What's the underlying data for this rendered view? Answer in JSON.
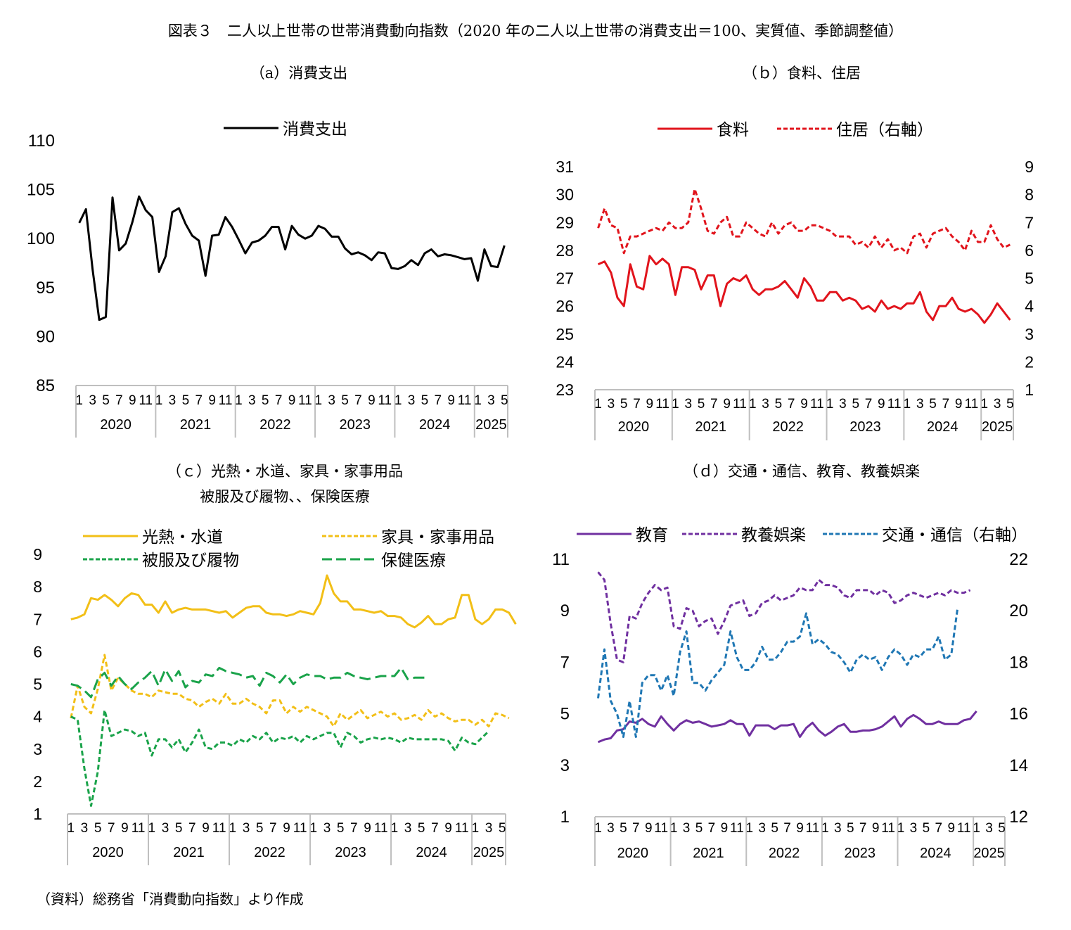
{
  "figure_title": "図表３　二人以上世帯の世帯消費動向指数（2020 年の二人以上世帯の消費支出＝100、実質値、季節調整値）",
  "source_note": "（資料）総務省「消費動向指数」より作成",
  "colors": {
    "black": "#000000",
    "red": "#e1141c",
    "yellow": "#f2bf17",
    "green": "#1aa34a",
    "purple": "#7030a0",
    "blue": "#1f77b4",
    "axis": "#bfbfbf"
  },
  "chart_data": [
    {
      "id": "a",
      "type": "line",
      "subtitle": "（a）消費支出",
      "x_month_labels": [
        "1",
        "3",
        "5",
        "7",
        "9",
        "11",
        "1",
        "3",
        "5",
        "7",
        "9",
        "11",
        "1",
        "3",
        "5",
        "7",
        "9",
        "11",
        "1",
        "3",
        "5",
        "7",
        "9",
        "11",
        "1",
        "3",
        "5",
        "7",
        "9",
        "11",
        "1",
        "3",
        "5"
      ],
      "years": [
        "2020",
        "2021",
        "2022",
        "2023",
        "2024",
        "2025"
      ],
      "ylim": [
        85,
        110
      ],
      "yticks": [
        "85",
        "90",
        "95",
        "100",
        "105",
        "110"
      ],
      "legend_position": "top",
      "series": [
        {
          "name": "消費支出",
          "axis": "left",
          "style": "solid",
          "color": "#000000",
          "values": [
            101.6,
            103,
            96.9,
            91.7,
            92,
            104.2,
            98.8,
            99.5,
            101.7,
            104.3,
            102.9,
            102.2,
            96.6,
            98.2,
            102.7,
            103.1,
            101.5,
            100.3,
            99.8,
            96.2,
            100.3,
            100.4,
            102.2,
            101.2,
            99.9,
            98.5,
            99.6,
            99.8,
            100.3,
            101.2,
            101.2,
            98.9,
            101.3,
            100.4,
            100,
            100.3,
            101.3,
            101,
            100.2,
            100.2,
            99,
            98.4,
            98.6,
            98.3,
            97.8,
            98.6,
            98.5,
            97,
            96.9,
            97.2,
            97.8,
            97.3,
            98.5,
            98.9,
            98.2,
            98.4,
            98.3,
            98.1,
            97.9,
            98,
            95.7,
            98.9,
            97.2,
            97.1,
            99.3
          ]
        }
      ]
    },
    {
      "id": "b",
      "type": "line",
      "subtitle": "（ｂ）食料、住居",
      "x_month_labels": [
        "1",
        "3",
        "5",
        "7",
        "9",
        "11",
        "1",
        "3",
        "5",
        "7",
        "9",
        "11",
        "1",
        "3",
        "5",
        "7",
        "9",
        "11",
        "1",
        "3",
        "5",
        "7",
        "9",
        "11",
        "1",
        "3",
        "5",
        "7",
        "9",
        "11",
        "1",
        "3",
        "5"
      ],
      "years": [
        "2020",
        "2021",
        "2022",
        "2023",
        "2024",
        "2025"
      ],
      "ylim": [
        23,
        31
      ],
      "yticks": [
        "23",
        "24",
        "25",
        "26",
        "27",
        "28",
        "29",
        "30",
        "31"
      ],
      "y2lim": [
        1,
        9
      ],
      "y2ticks": [
        "1",
        "2",
        "3",
        "4",
        "5",
        "6",
        "7",
        "8",
        "9"
      ],
      "legend_position": "top",
      "series": [
        {
          "name": "食料",
          "axis": "left",
          "style": "solid",
          "color": "#e1141c",
          "values": [
            27.5,
            27.6,
            27.2,
            26.3,
            26,
            27.5,
            26.7,
            26.6,
            27.8,
            27.5,
            27.7,
            27.5,
            26.4,
            27.4,
            27.4,
            27.3,
            26.6,
            27.1,
            27.1,
            26,
            26.8,
            27,
            26.9,
            27.1,
            26.6,
            26.4,
            26.6,
            26.6,
            26.7,
            26.9,
            26.6,
            26.3,
            27,
            26.7,
            26.2,
            26.2,
            26.5,
            26.5,
            26.2,
            26.3,
            26.2,
            25.9,
            26,
            25.8,
            26.2,
            25.9,
            26,
            25.9,
            26.1,
            26.1,
            26.5,
            25.8,
            25.5,
            26,
            26,
            26.3,
            25.9,
            25.8,
            25.9,
            25.7,
            25.4,
            25.7,
            26.1,
            25.8,
            25.5
          ]
        },
        {
          "name": "住居（右軸）",
          "axis": "right",
          "style": "dashed",
          "color": "#e1141c",
          "values": [
            6.8,
            7.5,
            6.9,
            6.8,
            5.9,
            6.5,
            6.5,
            6.6,
            6.7,
            6.8,
            6.7,
            7,
            6.8,
            6.8,
            7,
            8.2,
            7.5,
            6.7,
            6.6,
            7,
            7.2,
            6.5,
            6.5,
            7,
            6.8,
            6.6,
            6.5,
            7,
            6.6,
            6.9,
            7,
            6.7,
            6.7,
            6.9,
            6.9,
            6.8,
            6.7,
            6.5,
            6.5,
            6.5,
            6.2,
            6.3,
            6.1,
            6.5,
            6.1,
            6.4,
            6,
            6.1,
            5.9,
            6.5,
            6.6,
            6.1,
            6.6,
            6.7,
            6.8,
            6.5,
            6.3,
            6,
            6.7,
            6.3,
            6.3,
            6.9,
            6.4,
            6.1,
            6.2
          ]
        }
      ]
    },
    {
      "id": "c",
      "type": "line",
      "subtitle": "（ｃ）光熱・水道、家具・家事用品",
      "subtitle2": "被服及び履物、、保険医療",
      "x_month_labels": [
        "1",
        "3",
        "5",
        "7",
        "9",
        "11",
        "1",
        "3",
        "5",
        "7",
        "9",
        "11",
        "1",
        "3",
        "5",
        "7",
        "9",
        "11",
        "1",
        "3",
        "5",
        "7",
        "9",
        "11",
        "1",
        "3",
        "5",
        "7",
        "9",
        "11",
        "1",
        "3",
        "5"
      ],
      "years": [
        "2020",
        "2021",
        "2022",
        "2023",
        "2024",
        "2025"
      ],
      "ylim": [
        1,
        9
      ],
      "yticks": [
        "1",
        "2",
        "3",
        "4",
        "5",
        "6",
        "7",
        "8",
        "9"
      ],
      "legend_position": "top",
      "series": [
        {
          "name": "光熱・水道",
          "axis": "left",
          "style": "solid",
          "color": "#f2bf17",
          "values": [
            7,
            7.05,
            7.15,
            7.65,
            7.6,
            7.75,
            7.6,
            7.4,
            7.65,
            7.8,
            7.75,
            7.45,
            7.45,
            7.2,
            7.55,
            7.2,
            7.3,
            7.35,
            7.3,
            7.3,
            7.3,
            7.25,
            7.2,
            7.25,
            7.05,
            7.2,
            7.35,
            7.4,
            7.4,
            7.2,
            7.15,
            7.15,
            7.1,
            7.15,
            7.25,
            7.2,
            7.15,
            7.5,
            8.35,
            7.8,
            7.55,
            7.55,
            7.3,
            7.3,
            7.25,
            7.2,
            7.25,
            7.1,
            7.1,
            7.05,
            6.85,
            6.75,
            6.9,
            7.1,
            6.85,
            6.85,
            7,
            7.05,
            7.75,
            7.75,
            7,
            6.85,
            7,
            7.3,
            7.3,
            7.2,
            6.85
          ]
        },
        {
          "name": "家具・家事用品",
          "axis": "left",
          "style": "dashed",
          "color": "#f2bf17",
          "values": [
            3.95,
            4.95,
            4.3,
            4.1,
            4.85,
            5.9,
            4.8,
            5.2,
            5,
            4.8,
            4.7,
            4.7,
            4.6,
            4.8,
            4.75,
            4.7,
            4.7,
            4.55,
            4.5,
            4.3,
            4.45,
            4.55,
            4.4,
            4.7,
            4.4,
            4.4,
            4.55,
            4.4,
            4.3,
            4.1,
            4.5,
            4.5,
            4.1,
            4.3,
            4.15,
            4.3,
            4.2,
            4.1,
            4,
            3.7,
            4.1,
            3.9,
            4.05,
            4.2,
            3.95,
            4.05,
            4.15,
            4,
            4.1,
            3.9,
            3.95,
            4.05,
            3.9,
            4.2,
            4,
            4.1,
            3.95,
            3.85,
            3.9,
            3.9,
            3.75,
            3.9,
            3.7,
            4.1,
            4.05,
            3.95
          ]
        },
        {
          "name": "被服及び履物",
          "axis": "left",
          "style": "dashed",
          "color": "#1aa34a",
          "values": [
            4,
            3.9,
            2.4,
            1.25,
            2.3,
            4.2,
            3.4,
            3.5,
            3.6,
            3.55,
            3.4,
            3.5,
            2.8,
            3.3,
            3.3,
            3.05,
            3.3,
            2.9,
            3.2,
            3.6,
            3.05,
            3,
            3.2,
            3.2,
            3.1,
            3.3,
            3.2,
            3.4,
            3.3,
            3.5,
            3.2,
            3.35,
            3.3,
            3.4,
            3.2,
            3.4,
            3.3,
            3.4,
            3.5,
            3.5,
            3.05,
            3.5,
            3.4,
            3.2,
            3.3,
            3.35,
            3.3,
            3.35,
            3.3,
            3.2,
            3.35,
            3.3,
            3.3,
            3.3,
            3.3,
            3.3,
            3.25,
            2.95,
            3.35,
            3.2,
            3.15,
            3.35,
            3.55
          ]
        },
        {
          "name": "保健医療",
          "axis": "left",
          "style": "longdash",
          "color": "#1aa34a",
          "values": [
            5,
            4.95,
            4.8,
            4.6,
            5.15,
            5.35,
            4.95,
            5.25,
            5,
            4.85,
            5.05,
            5.2,
            5.4,
            4.95,
            5.45,
            5.1,
            5.4,
            4.9,
            5.1,
            5.05,
            5.3,
            5.25,
            5.5,
            5.4,
            5.35,
            5.3,
            5.2,
            5.25,
            4.95,
            5.35,
            5.25,
            5.05,
            5.3,
            5,
            5.2,
            5.3,
            5.25,
            5.25,
            5.15,
            5.2,
            5.2,
            5.35,
            5.25,
            5.2,
            5.15,
            5.2,
            5.25,
            5.25,
            5.25,
            5.5,
            5.15,
            5.2,
            5.2,
            5.2
          ]
        }
      ]
    },
    {
      "id": "d",
      "type": "line",
      "subtitle": "（ｄ）交通・通信、教育、教養娯楽",
      "x_month_labels": [
        "1",
        "3",
        "5",
        "7",
        "9",
        "11",
        "1",
        "3",
        "5",
        "7",
        "9",
        "11",
        "1",
        "3",
        "5",
        "7",
        "9",
        "11",
        "1",
        "3",
        "5",
        "7",
        "9",
        "11",
        "1",
        "3",
        "5",
        "7",
        "9",
        "11",
        "1",
        "3",
        "5"
      ],
      "years": [
        "2020",
        "2021",
        "2022",
        "2023",
        "2024",
        "2025"
      ],
      "ylim": [
        1,
        11
      ],
      "yticks": [
        "1",
        "3",
        "5",
        "7",
        "9",
        "11"
      ],
      "y2lim": [
        12,
        22
      ],
      "y2ticks": [
        "12",
        "14",
        "16",
        "18",
        "20",
        "22"
      ],
      "legend_position": "top",
      "series": [
        {
          "name": "教育",
          "axis": "left",
          "style": "solid",
          "color": "#7030a0",
          "values": [
            3.9,
            4,
            4.05,
            4.35,
            4.4,
            4.7,
            4.65,
            4.8,
            4.6,
            4.5,
            4.9,
            4.6,
            4.35,
            4.6,
            4.75,
            4.65,
            4.7,
            4.6,
            4.5,
            4.55,
            4.6,
            4.75,
            4.6,
            4.6,
            4.15,
            4.55,
            4.55,
            4.55,
            4.4,
            4.55,
            4.55,
            4.6,
            4.1,
            4.45,
            4.65,
            4.35,
            4.15,
            4.3,
            4.5,
            4.6,
            4.3,
            4.3,
            4.35,
            4.35,
            4.4,
            4.5,
            4.7,
            4.9,
            4.5,
            4.8,
            4.95,
            4.8,
            4.6,
            4.6,
            4.7,
            4.6,
            4.6,
            4.6,
            4.75,
            4.8,
            5.1
          ]
        },
        {
          "name": "教養娯楽",
          "axis": "left",
          "style": "dashed",
          "color": "#7030a0",
          "values": [
            10.5,
            10.2,
            8.5,
            7.1,
            7,
            8.8,
            8.7,
            9.3,
            9.7,
            10,
            9.8,
            9.9,
            8.4,
            8.3,
            9.1,
            9,
            8.4,
            8.6,
            8.7,
            8.1,
            8.6,
            9.2,
            9.3,
            9.4,
            8.8,
            8.9,
            9.3,
            9.4,
            9.6,
            9.4,
            9.5,
            9.6,
            9.9,
            9.8,
            9.8,
            10.2,
            10,
            10,
            9.9,
            9.6,
            9.5,
            9.8,
            9.8,
            9.8,
            9.6,
            9.8,
            9.7,
            9.3,
            9.4,
            9.6,
            9.7,
            9.6,
            9.5,
            9.6,
            9.7,
            9.6,
            9.8,
            9.7,
            9.7,
            9.8
          ]
        },
        {
          "name": "交通・通信（右軸）",
          "axis": "right",
          "style": "dashed",
          "color": "#1f77b4",
          "values": [
            16.6,
            18.5,
            16.5,
            16,
            15.1,
            16.5,
            15.1,
            17.2,
            17.5,
            17.5,
            16.9,
            17.5,
            16.7,
            18.4,
            19.2,
            17.2,
            17.2,
            16.9,
            17.3,
            17.6,
            17.9,
            19.2,
            18.2,
            17.7,
            17.7,
            18,
            18.6,
            18.1,
            18.1,
            18.4,
            18.8,
            18.8,
            19,
            19.9,
            18.7,
            18.9,
            18.7,
            18.4,
            18.3,
            18,
            17.6,
            18.1,
            18.3,
            18.1,
            18.2,
            17.7,
            18.2,
            18.5,
            18.3,
            17.9,
            18.3,
            18.2,
            18.5,
            18.5,
            19,
            18.1,
            18.3,
            20.1
          ]
        }
      ]
    }
  ]
}
